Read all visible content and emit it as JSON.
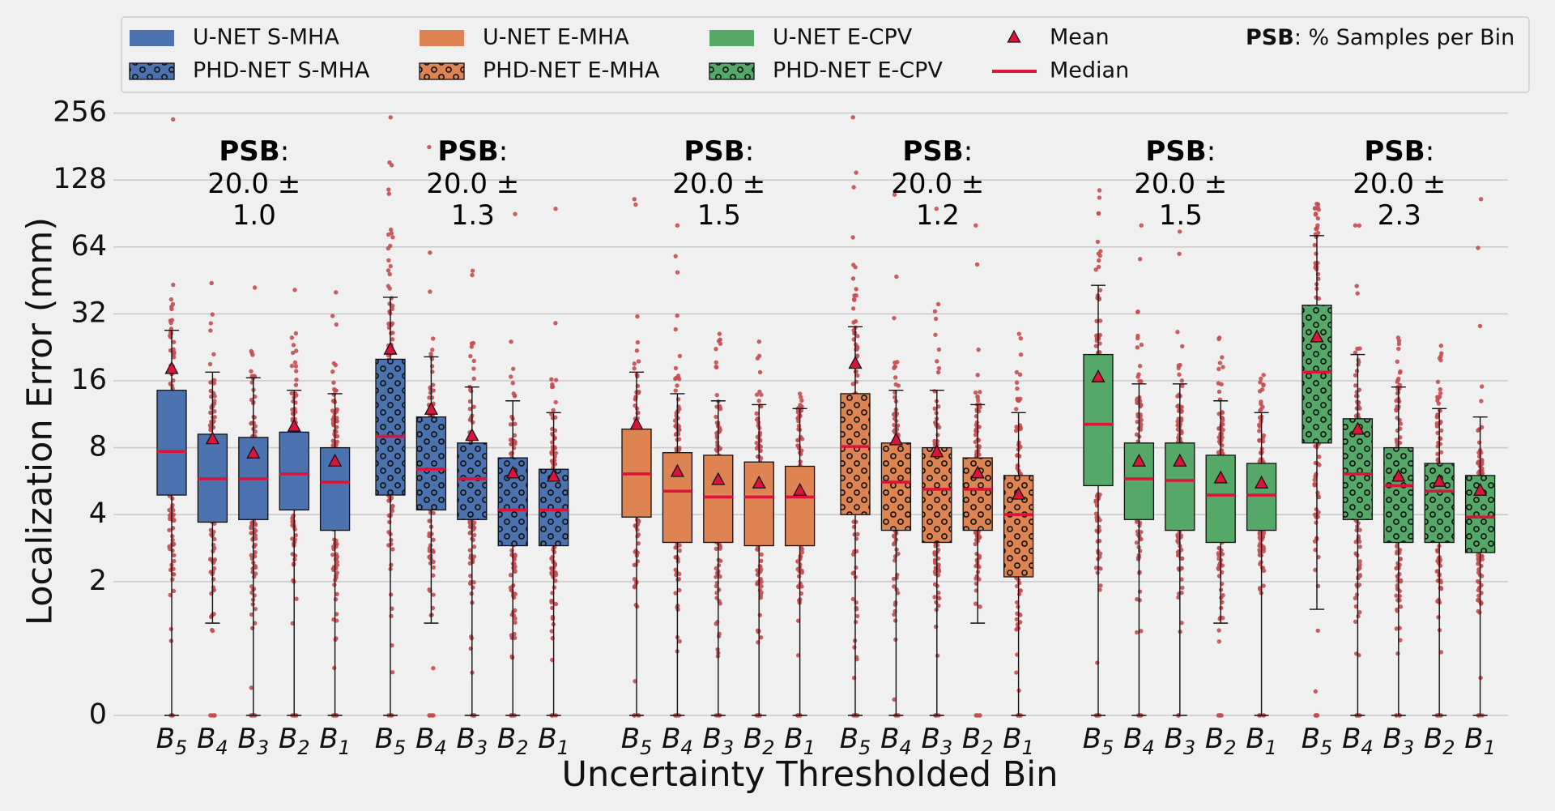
{
  "chart_data": {
    "type": "box",
    "title": "",
    "xlabel": "Uncertainty Thresholded Bin",
    "ylabel": "Localization Error (mm)",
    "yscale": "symlog2",
    "ytick_labels": [
      "0",
      "2",
      "4",
      "8",
      "16",
      "32",
      "64",
      "128",
      "256"
    ],
    "ytick_values": [
      0,
      2,
      4,
      8,
      16,
      32,
      64,
      128,
      256
    ],
    "grid": true,
    "bins": [
      "B5",
      "B4",
      "B3",
      "B2",
      "B1"
    ],
    "legend": {
      "items": [
        {
          "label": "U-NET S-MHA",
          "kind": "patch",
          "color": "#4c72b0",
          "hatch": false
        },
        {
          "label": "PHD-NET S-MHA",
          "kind": "patch",
          "color": "#4c72b0",
          "hatch": true
        },
        {
          "label": "U-NET E-MHA",
          "kind": "patch",
          "color": "#dd8452",
          "hatch": false
        },
        {
          "label": "PHD-NET E-MHA",
          "kind": "patch",
          "color": "#dd8452",
          "hatch": true
        },
        {
          "label": "U-NET E-CPV",
          "kind": "patch",
          "color": "#55a868",
          "hatch": false
        },
        {
          "label": "PHD-NET E-CPV",
          "kind": "patch",
          "color": "#55a868",
          "hatch": true
        },
        {
          "label": "Mean",
          "kind": "triangle",
          "color": "#dc143c"
        },
        {
          "label": "Median",
          "kind": "line",
          "color": "#dc143c"
        }
      ],
      "psb_bold": "PSB",
      "psb_rest": ": % Samples per Bin"
    },
    "psb_prefix": "PSB",
    "groups": [
      {
        "name": "U-NET S-MHA",
        "color": "#4c72b0",
        "hatch": false,
        "psb": "20.0 ±",
        "psb_sd": "1.0",
        "boxes": [
          {
            "bin": "B5",
            "q1": 4.9,
            "median": 7.7,
            "q3": 14.5,
            "mean": 18.0,
            "whisker_low": 0,
            "whisker_high": 27,
            "max_outlier": 240
          },
          {
            "bin": "B4",
            "q1": 3.7,
            "median": 5.8,
            "q3": 9.2,
            "mean": 8.7,
            "whisker_low": 1.3,
            "whisker_high": 17.5,
            "max_outlier": 44
          },
          {
            "bin": "B3",
            "q1": 3.8,
            "median": 5.8,
            "q3": 8.9,
            "mean": 7.5,
            "whisker_low": 0,
            "whisker_high": 16.5,
            "max_outlier": 42
          },
          {
            "bin": "B2",
            "q1": 4.2,
            "median": 6.1,
            "q3": 9.4,
            "mean": 9.9,
            "whisker_low": 0,
            "whisker_high": 14.5,
            "max_outlier": 41
          },
          {
            "bin": "B1",
            "q1": 3.4,
            "median": 5.6,
            "q3": 8.0,
            "mean": 6.9,
            "whisker_low": 0,
            "whisker_high": 14.0,
            "max_outlier": 40
          }
        ]
      },
      {
        "name": "PHD-NET S-MHA",
        "color": "#4c72b0",
        "hatch": true,
        "psb": "20.0 ±",
        "psb_sd": "1.3",
        "boxes": [
          {
            "bin": "B5",
            "q1": 4.9,
            "median": 9.0,
            "q3": 20.0,
            "mean": 22.0,
            "whisker_low": 0,
            "whisker_high": 38,
            "max_outlier": 245
          },
          {
            "bin": "B4",
            "q1": 4.2,
            "median": 6.4,
            "q3": 11.0,
            "mean": 11.8,
            "whisker_low": 1.3,
            "whisker_high": 20.5,
            "max_outlier": 180
          },
          {
            "bin": "B3",
            "q1": 3.8,
            "median": 5.8,
            "q3": 8.4,
            "mean": 9.0,
            "whisker_low": 0,
            "whisker_high": 15.0,
            "max_outlier": 50
          },
          {
            "bin": "B2",
            "q1": 2.9,
            "median": 4.2,
            "q3": 7.2,
            "mean": 6.1,
            "whisker_low": 0,
            "whisker_high": 13.0,
            "max_outlier": 90
          },
          {
            "bin": "B1",
            "q1": 2.9,
            "median": 4.2,
            "q3": 6.4,
            "mean": 5.9,
            "whisker_low": 0,
            "whisker_high": 11.5,
            "max_outlier": 95
          }
        ]
      },
      {
        "name": "U-NET E-MHA",
        "color": "#dd8452",
        "hatch": false,
        "psb": "20.0 ±",
        "psb_sd": "1.5",
        "boxes": [
          {
            "bin": "B5",
            "q1": 3.9,
            "median": 6.1,
            "q3": 9.7,
            "mean": 10.1,
            "whisker_low": 0,
            "whisker_high": 17.5,
            "max_outlier": 105
          },
          {
            "bin": "B4",
            "q1": 3.0,
            "median": 5.1,
            "q3": 7.6,
            "mean": 6.2,
            "whisker_low": 0,
            "whisker_high": 14.0,
            "max_outlier": 80
          },
          {
            "bin": "B3",
            "q1": 3.0,
            "median": 4.8,
            "q3": 7.4,
            "mean": 5.7,
            "whisker_low": 0,
            "whisker_high": 13.0,
            "max_outlier": 26
          },
          {
            "bin": "B2",
            "q1": 2.9,
            "median": 4.8,
            "q3": 6.9,
            "mean": 5.5,
            "whisker_low": 0,
            "whisker_high": 12.5,
            "max_outlier": 24
          },
          {
            "bin": "B1",
            "q1": 2.9,
            "median": 4.8,
            "q3": 6.6,
            "mean": 5.1,
            "whisker_low": 0,
            "whisker_high": 12.0,
            "max_outlier": 14
          }
        ]
      },
      {
        "name": "PHD-NET E-MHA",
        "color": "#dd8452",
        "hatch": true,
        "psb": "20.0 ±",
        "psb_sd": "1.2",
        "boxes": [
          {
            "bin": "B5",
            "q1": 4.0,
            "median": 8.1,
            "q3": 14.0,
            "mean": 19.0,
            "whisker_low": 0,
            "whisker_high": 28,
            "max_outlier": 245
          },
          {
            "bin": "B4",
            "q1": 3.4,
            "median": 5.6,
            "q3": 8.4,
            "mean": 8.6,
            "whisker_low": 0,
            "whisker_high": 14.5,
            "max_outlier": 110
          },
          {
            "bin": "B3",
            "q1": 3.0,
            "median": 5.2,
            "q3": 8.0,
            "mean": 7.6,
            "whisker_low": 0,
            "whisker_high": 14.5,
            "max_outlier": 95
          },
          {
            "bin": "B2",
            "q1": 3.4,
            "median": 5.2,
            "q3": 7.2,
            "mean": 6.1,
            "whisker_low": 1.3,
            "whisker_high": 12.5,
            "max_outlier": 80
          },
          {
            "bin": "B1",
            "q1": 2.1,
            "median": 4.0,
            "q3": 6.0,
            "mean": 4.9,
            "whisker_low": 0,
            "whisker_high": 11.5,
            "max_outlier": 26
          }
        ]
      },
      {
        "name": "U-NET E-CPV",
        "color": "#55a868",
        "hatch": false,
        "psb": "20.0 ±",
        "psb_sd": "1.5",
        "boxes": [
          {
            "bin": "B5",
            "q1": 5.4,
            "median": 10.2,
            "q3": 21.0,
            "mean": 16.5,
            "whisker_low": 0,
            "whisker_high": 43,
            "max_outlier": 115
          },
          {
            "bin": "B4",
            "q1": 3.8,
            "median": 5.8,
            "q3": 8.4,
            "mean": 6.9,
            "whisker_low": 0,
            "whisker_high": 15.5,
            "max_outlier": 80
          },
          {
            "bin": "B3",
            "q1": 3.4,
            "median": 5.7,
            "q3": 8.4,
            "mean": 6.9,
            "whisker_low": 0,
            "whisker_high": 15.5,
            "max_outlier": 75
          },
          {
            "bin": "B2",
            "q1": 3.0,
            "median": 4.9,
            "q3": 7.4,
            "mean": 5.8,
            "whisker_low": 1.3,
            "whisker_high": 13.0,
            "max_outlier": 25
          },
          {
            "bin": "B1",
            "q1": 3.4,
            "median": 4.9,
            "q3": 6.8,
            "mean": 5.5,
            "whisker_low": 0,
            "whisker_high": 11.5,
            "max_outlier": 17
          }
        ]
      },
      {
        "name": "PHD-NET E-CPV",
        "color": "#55a868",
        "hatch": true,
        "psb": "20.0 ±",
        "psb_sd": "2.3",
        "boxes": [
          {
            "bin": "B5",
            "q1": 8.4,
            "median": 17.5,
            "q3": 35.0,
            "mean": 25.0,
            "whisker_low": 1.5,
            "whisker_high": 72,
            "max_outlier": 100
          },
          {
            "bin": "B4",
            "q1": 3.8,
            "median": 6.1,
            "q3": 10.8,
            "mean": 9.6,
            "whisker_low": 0,
            "whisker_high": 21,
            "max_outlier": 80
          },
          {
            "bin": "B3",
            "q1": 3.0,
            "median": 5.4,
            "q3": 8.0,
            "mean": 5.9,
            "whisker_low": 0,
            "whisker_high": 15.0,
            "max_outlier": 25
          },
          {
            "bin": "B2",
            "q1": 3.0,
            "median": 5.1,
            "q3": 6.8,
            "mean": 5.6,
            "whisker_low": 0,
            "whisker_high": 12.0,
            "max_outlier": 23
          },
          {
            "bin": "B1",
            "q1": 2.7,
            "median": 3.9,
            "q3": 6.0,
            "mean": 5.1,
            "whisker_low": 0,
            "whisker_high": 11.0,
            "max_outlier": 105
          }
        ]
      }
    ]
  }
}
